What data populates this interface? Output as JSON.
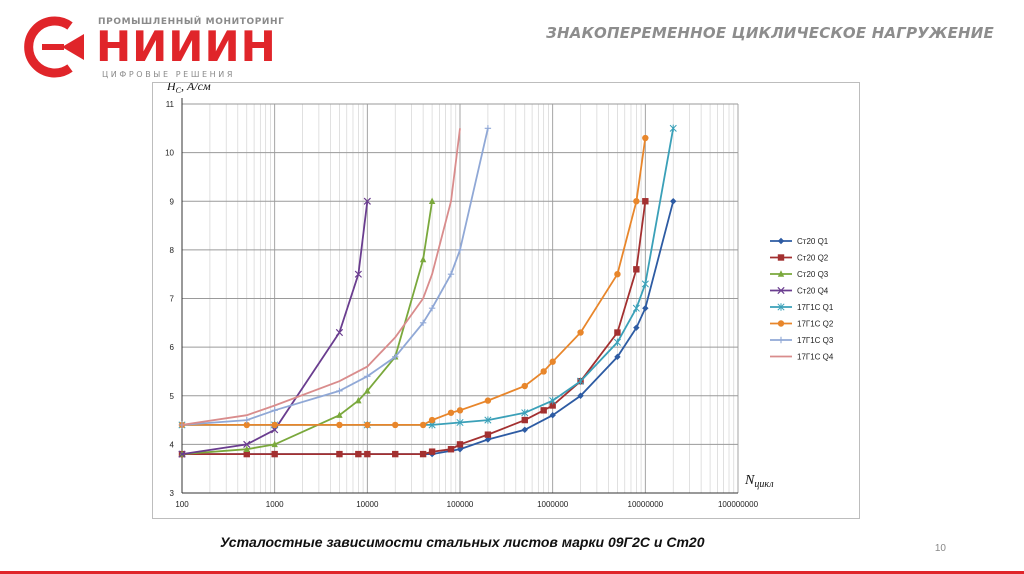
{
  "logo": {
    "top_text": "ПРОМЫШЛЕННЫЙ МОНИТОРИНГ",
    "name": "НИИИН",
    "bottom_text": "ЦИФРОВЫЕ РЕШЕНИЯ",
    "accent_color": "#e0252a",
    "icon": "c-arrow-logo-icon"
  },
  "header": {
    "title": "ЗНАКОПЕРЕМЕННОЕ ЦИКЛИЧЕСКОЕ НАГРУЖЕНИЕ"
  },
  "caption": "Усталостные зависимости стальных листов марки 09Г2С и Ст20",
  "page_number": "10",
  "chart_data": {
    "type": "line",
    "x_scale": "log",
    "xlim": [
      100,
      100000000
    ],
    "ylim": [
      3,
      11
    ],
    "x_ticks": [
      "100",
      "1000",
      "10000",
      "100000",
      "1000000",
      "10000000",
      "100000000"
    ],
    "y_ticks": [
      "3",
      "4",
      "5",
      "6",
      "7",
      "8",
      "9",
      "10",
      "11"
    ],
    "ylabel_main": "H",
    "ylabel_sub": "C",
    "ylabel_unit": ", А/см",
    "xlabel_main": "N",
    "xlabel_sub": "цикл",
    "grid": true,
    "legend_position": "right",
    "series": [
      {
        "name": "Ст20 Q1",
        "color": "#2d5ba3",
        "marker": "diamond",
        "x": [
          100,
          1000,
          5000,
          10000,
          50000,
          100000,
          200000,
          500000,
          1000000,
          2000000,
          5000000,
          8000000,
          10000000,
          20000000
        ],
        "y": [
          3.8,
          3.8,
          3.8,
          3.8,
          3.8,
          3.9,
          4.1,
          4.3,
          4.6,
          5.0,
          5.8,
          6.4,
          6.8,
          9.0
        ]
      },
      {
        "name": "Ст20 Q2",
        "color": "#a33030",
        "marker": "square",
        "x": [
          100,
          500,
          1000,
          5000,
          8000,
          10000,
          20000,
          40000,
          50000,
          80000,
          100000,
          200000,
          500000,
          800000,
          1000000,
          2000000,
          5000000,
          8000000,
          10000000
        ],
        "y": [
          3.8,
          3.8,
          3.8,
          3.8,
          3.8,
          3.8,
          3.8,
          3.8,
          3.85,
          3.9,
          4.0,
          4.2,
          4.5,
          4.7,
          4.8,
          5.3,
          6.3,
          7.6,
          9.0
        ]
      },
      {
        "name": "Ст20 Q3",
        "color": "#7aa83c",
        "marker": "triangle",
        "x": [
          100,
          500,
          1000,
          5000,
          8000,
          10000,
          20000,
          40000,
          50000
        ],
        "y": [
          3.8,
          3.9,
          4.0,
          4.6,
          4.9,
          5.1,
          5.8,
          7.8,
          9.0
        ]
      },
      {
        "name": "Ст20 Q4",
        "color": "#6a3d8f",
        "marker": "x",
        "x": [
          100,
          500,
          1000,
          5000,
          8000,
          10000
        ],
        "y": [
          3.8,
          4.0,
          4.3,
          6.3,
          7.5,
          9.0
        ]
      },
      {
        "name": "17Г1С Q1",
        "color": "#3aa0b8",
        "marker": "star",
        "x": [
          100,
          1000,
          10000,
          50000,
          100000,
          200000,
          500000,
          1000000,
          2000000,
          5000000,
          8000000,
          10000000,
          20000000
        ],
        "y": [
          4.4,
          4.4,
          4.4,
          4.4,
          4.45,
          4.5,
          4.65,
          4.9,
          5.3,
          6.1,
          6.8,
          7.3,
          10.5
        ]
      },
      {
        "name": "17Г1С Q2",
        "color": "#e8862b",
        "marker": "circle",
        "x": [
          100,
          500,
          1000,
          5000,
          10000,
          20000,
          40000,
          50000,
          80000,
          100000,
          200000,
          500000,
          800000,
          1000000,
          2000000,
          5000000,
          8000000,
          10000000
        ],
        "y": [
          4.4,
          4.4,
          4.4,
          4.4,
          4.4,
          4.4,
          4.4,
          4.5,
          4.65,
          4.7,
          4.9,
          5.2,
          5.5,
          5.7,
          6.3,
          7.5,
          9.0,
          10.3
        ]
      },
      {
        "name": "17Г1С Q3",
        "color": "#90a8d6",
        "marker": "plus",
        "x": [
          100,
          500,
          1000,
          5000,
          10000,
          20000,
          40000,
          50000,
          80000,
          100000,
          200000
        ],
        "y": [
          4.4,
          4.5,
          4.7,
          5.1,
          5.4,
          5.8,
          6.5,
          6.8,
          7.5,
          8.0,
          10.5
        ]
      },
      {
        "name": "17Г1С Q4",
        "color": "#d98c8c",
        "marker": "none",
        "x": [
          100,
          500,
          1000,
          5000,
          10000,
          20000,
          40000,
          50000,
          80000,
          100000
        ],
        "y": [
          4.4,
          4.6,
          4.8,
          5.3,
          5.6,
          6.2,
          7.0,
          7.5,
          9.0,
          10.5
        ]
      }
    ]
  }
}
